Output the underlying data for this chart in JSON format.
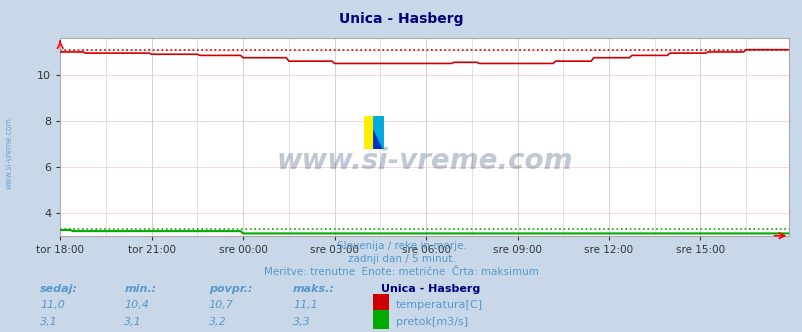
{
  "title": "Unica - Hasberg",
  "title_color": "#000080",
  "bg_color": "#c8d8e8",
  "plot_bg_color": "#ffffff",
  "grid_color_h": "#ffcccc",
  "grid_color_v": "#cccccc",
  "xlabel_ticks": [
    "tor 18:00",
    "tor 21:00",
    "sre 00:00",
    "sre 03:00",
    "sre 06:00",
    "sre 09:00",
    "sre 12:00",
    "sre 15:00"
  ],
  "tick_positions": [
    0,
    36,
    72,
    108,
    144,
    180,
    216,
    252
  ],
  "n_points": 288,
  "ylim": [
    3.0,
    11.6
  ],
  "yticks": [
    4,
    6,
    8,
    10
  ],
  "temp_color": "#cc0000",
  "flow_color": "#00aa00",
  "temp_max": 11.1,
  "flow_max": 3.3,
  "watermark": "www.si-vreme.com",
  "watermark_color": "#1a3a6a",
  "subtitle1": "Slovenija / reke in morje.",
  "subtitle2": "zadnji dan / 5 minut.",
  "subtitle3": "Meritve: trenutne  Enote: metrične  Črta: maksimum",
  "subtitle_color": "#5599cc",
  "legend_title": "Unica - Hasberg",
  "legend_labels": [
    "temperatura[C]",
    "pretok[m3/s]"
  ],
  "legend_colors": [
    "#cc0000",
    "#00aa00"
  ],
  "stats_headers": [
    "sedaj:",
    "min.:",
    "povpr.:",
    "maks.:"
  ],
  "stats_temp": [
    "11,0",
    "10,4",
    "10,7",
    "11,1"
  ],
  "stats_flow": [
    "3,1",
    "3,1",
    "3,2",
    "3,3"
  ],
  "stats_color": "#5599cc",
  "left_label": "www.si-vreme.com",
  "left_label_color": "#5599cc",
  "logo_yellow": "#ffee00",
  "logo_blue": "#0033cc",
  "logo_cyan": "#00aadd"
}
